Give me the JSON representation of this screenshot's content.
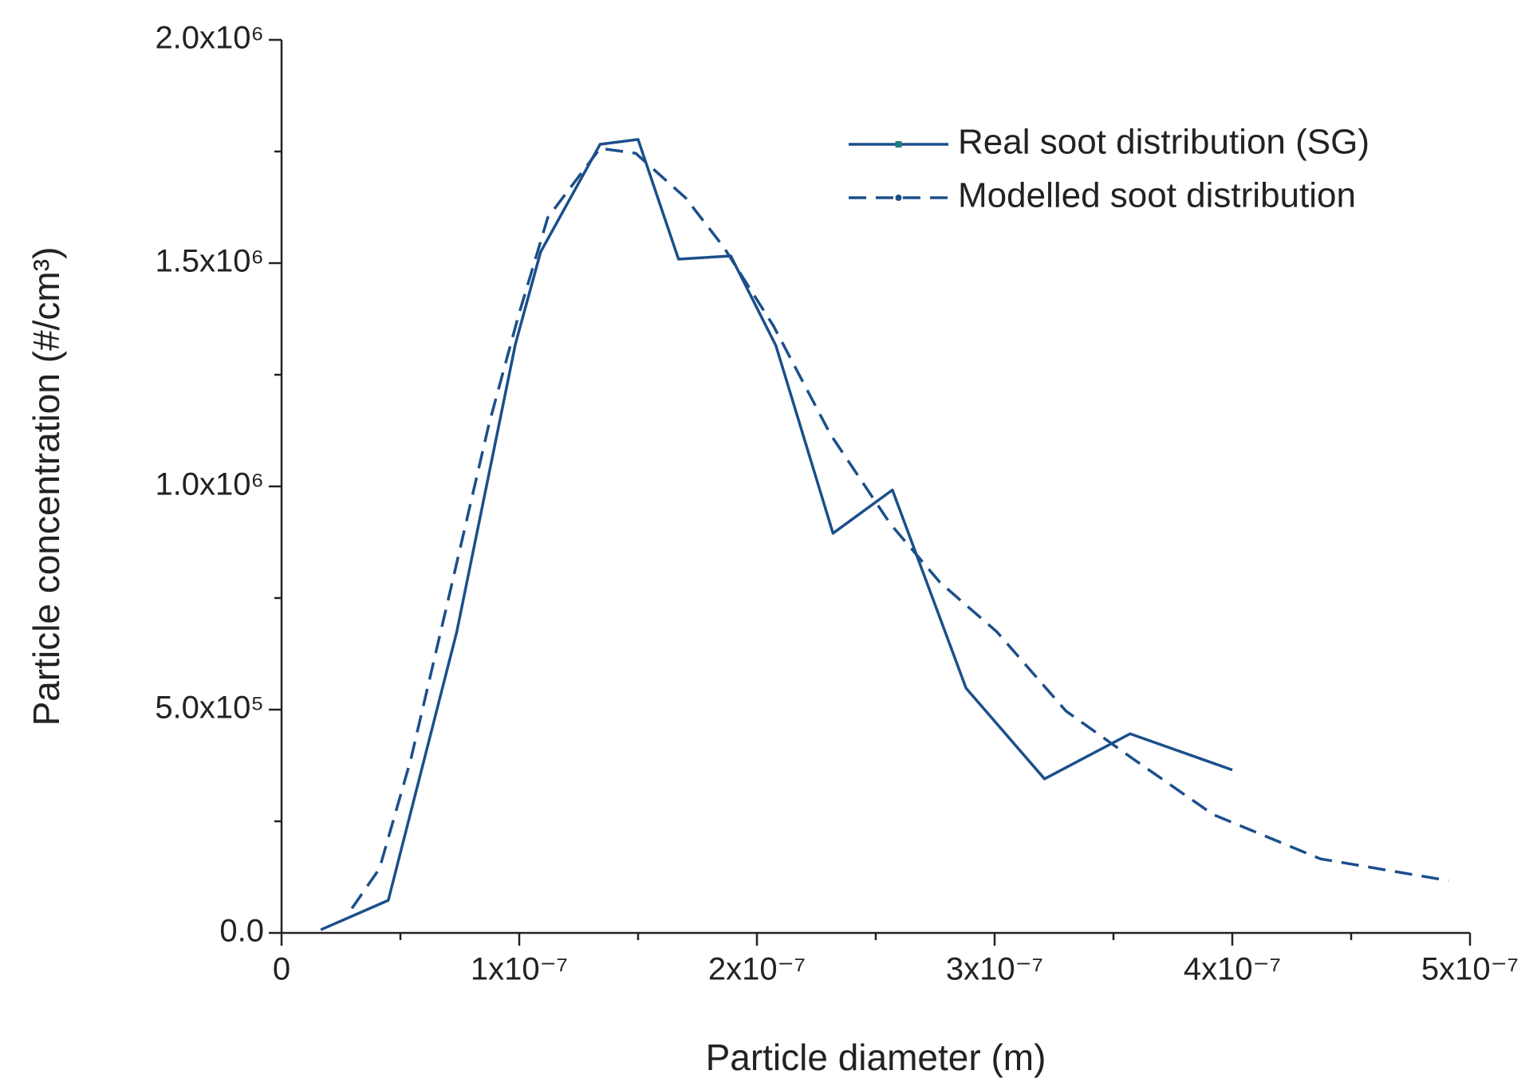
{
  "chart_data": {
    "type": "line",
    "xlabel": "Particle diameter (m)",
    "ylabel": "Particle concentration  (#/cm³)",
    "xlim": [
      0,
      5e-07
    ],
    "xticks": [
      0,
      {
        "value": 1e-07,
        "label": "1x10⁻⁷"
      },
      {
        "value": 2e-07,
        "label": "2x10⁻⁷"
      },
      {
        "value": 3e-07,
        "label": "3x10⁻⁷"
      },
      {
        "value": 4e-07,
        "label": "4x10⁻⁷"
      },
      {
        "value": 5e-07,
        "label": "5x10⁻⁷"
      }
    ],
    "xminorticks": [
      5e-08,
      1.5e-07,
      2.5e-07,
      3.5e-07,
      4.5e-07
    ],
    "ylim": [
      0,
      2000000
    ],
    "yticks": [
      {
        "value": 0,
        "label": "0.0"
      },
      {
        "value": 500000,
        "label": "5.0x10⁵"
      },
      {
        "value": 1000000,
        "label": "1.0x10⁶"
      },
      {
        "value": 1500000,
        "label": "1.5x10⁶"
      },
      {
        "value": 2000000,
        "label": "2.0x10⁶"
      }
    ],
    "yminorticks": [
      250000,
      750000,
      1250000,
      1750000
    ],
    "legend": "upper right",
    "series": [
      {
        "name": "Real soot distribution (SG)",
        "color": "#1b4f8a",
        "dash": "solid",
        "x": [
          1.65e-08,
          4.49e-08,
          7.37e-08,
          9.84e-08,
          1.09e-07,
          1.34e-07,
          1.5e-07,
          1.67e-07,
          1.89e-07,
          2.08e-07,
          2.32e-07,
          2.57e-07,
          2.88e-07,
          3.21e-07,
          3.57e-07,
          4e-07
        ],
        "values": [
          7000,
          73000,
          674000,
          1319000,
          1525000,
          1766000,
          1777000,
          1509000,
          1516000,
          1315000,
          895000,
          992000,
          548000,
          345000,
          446000,
          365000
        ]
      },
      {
        "name": "Modelled soot distribution",
        "color": "#1b4f8a",
        "dash": "dashed",
        "x": [
          2.96e-08,
          4.12e-08,
          5.43e-08,
          7.08e-08,
          8.72e-08,
          9.96e-08,
          1.12e-07,
          1.34e-07,
          1.49e-07,
          1.7e-07,
          1.86e-07,
          2.07e-07,
          2.31e-07,
          2.56e-07,
          2.77e-07,
          3.01e-07,
          3.3e-07,
          3.59e-07,
          3.92e-07,
          4.37e-07,
          4.91e-07
        ],
        "values": [
          55000,
          144000,
          387000,
          762000,
          1138000,
          1381000,
          1602000,
          1757000,
          1746000,
          1646000,
          1536000,
          1359000,
          1116000,
          917000,
          785000,
          674000,
          497000,
          387000,
          265000,
          166000,
          117000
        ]
      }
    ]
  }
}
